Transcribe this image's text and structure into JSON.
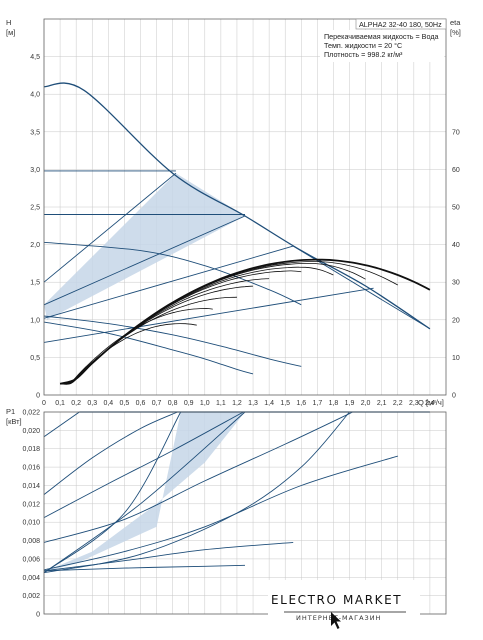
{
  "chart_data": [
    {
      "type": "line",
      "title": "ALPHA2 32-40 180, 50Hz",
      "notes": [
        "Перекачиваемая жидкость = Вода",
        "Темп. жидкости = 20 °C",
        "Плотность = 998.2 кг/м³"
      ],
      "ylabel": "H",
      "yunit": "[м]",
      "y2label": "eta",
      "y2unit": "[%]",
      "xlabel": "Q",
      "xunit": "[м³/ч]",
      "xlim": [
        0,
        2.5
      ],
      "ylim": [
        0,
        5.0
      ],
      "y2lim": [
        0,
        100
      ],
      "xticks": [
        "0",
        "0,1",
        "0,2",
        "0,3",
        "0,4",
        "0,5",
        "0,6",
        "0,7",
        "0,8",
        "0,9",
        "1,0",
        "1,1",
        "1,2",
        "1,3",
        "1,4",
        "1,5",
        "1,6",
        "1,7",
        "1,8",
        "1,9",
        "2,0",
        "2,1",
        "2,2",
        "2,3",
        "2,4"
      ],
      "yticks": [
        "0",
        "0,5",
        "1,0",
        "1,5",
        "2,0",
        "2,5",
        "3,0",
        "3,5",
        "4,0",
        "4,5"
      ],
      "y2ticks": [
        "0",
        "10",
        "20",
        "30",
        "40",
        "50",
        "60",
        "70"
      ],
      "grid": true,
      "colors": {
        "curve": "#1f4e79",
        "fill": "#c6d6e7",
        "eta": "#111111",
        "grid": "#c8c8c8"
      },
      "shaded_regions": [
        {
          "x": [
            0,
            0.82,
            1.25,
            0.02
          ],
          "y": [
            1.2,
            2.95,
            2.38,
            1.0
          ]
        }
      ],
      "series": [
        {
          "x": [
            0,
            0.25,
            0.8,
            1.25,
            1.6,
            2.0,
            2.4
          ],
          "y": [
            4.1,
            4.05,
            2.95,
            2.38,
            1.92,
            1.45,
            0.88
          ]
        },
        {
          "x": [
            0,
            0.82
          ],
          "y": [
            2.98,
            2.98
          ]
        },
        {
          "x": [
            0,
            1.25
          ],
          "y": [
            2.4,
            2.4
          ]
        },
        {
          "x": [
            0,
            0.82
          ],
          "y": [
            1.5,
            2.95
          ]
        },
        {
          "x": [
            0,
            1.25
          ],
          "y": [
            1.2,
            2.38
          ]
        },
        {
          "x": [
            0,
            1.55
          ],
          "y": [
            1.02,
            1.98
          ]
        },
        {
          "x": [
            0,
            2.05
          ],
          "y": [
            0.7,
            1.42
          ]
        },
        {
          "x": [
            0,
            0.6,
            1.0,
            1.4,
            1.6
          ],
          "y": [
            2.03,
            1.92,
            1.72,
            1.4,
            1.2
          ]
        },
        {
          "x": [
            1.55,
            2.4
          ],
          "y": [
            1.98,
            0.88
          ]
        },
        {
          "x": [
            0,
            0.4,
            0.8,
            1.1,
            1.4,
            1.6
          ],
          "y": [
            1.05,
            0.95,
            0.8,
            0.65,
            0.48,
            0.38
          ]
        },
        {
          "x": [
            0,
            0.4,
            0.8,
            1.0,
            1.2,
            1.3
          ],
          "y": [
            0.97,
            0.82,
            0.6,
            0.48,
            0.34,
            0.28
          ]
        }
      ]
    },
    {
      "type": "line",
      "ylabel": "P1",
      "yunit": "[кВт]",
      "xlim": [
        0,
        2.5
      ],
      "ylim": [
        0,
        0.022
      ],
      "yticks": [
        "0",
        "0,002",
        "0,004",
        "0,006",
        "0,008",
        "0,010",
        "0,012",
        "0,014",
        "0,016",
        "0,018",
        "0,020",
        "0,022"
      ],
      "grid": true,
      "shaded_regions": [
        {
          "x": [
            0,
            0.2,
            0.7,
            0.85,
            1.25,
            1.0,
            0.7,
            0.3,
            0
          ],
          "y": [
            0.0046,
            0.0055,
            0.0095,
            0.022,
            0.022,
            0.0165,
            0.012,
            0.0068,
            0.0046
          ]
        }
      ],
      "series": [
        {
          "x": [
            0.22,
            2.4
          ],
          "y": [
            0.022,
            0.022
          ]
        },
        {
          "x": [
            0,
            0.22
          ],
          "y": [
            0.0193,
            0.022
          ]
        },
        {
          "x": [
            0,
            0.5,
            0.85
          ],
          "y": [
            0.0045,
            0.011,
            0.022
          ]
        },
        {
          "x": [
            0,
            0.6,
            1.25
          ],
          "y": [
            0.0045,
            0.012,
            0.022
          ]
        },
        {
          "x": [
            0,
            0.6,
            1.2,
            1.6,
            1.9
          ],
          "y": [
            0.0045,
            0.0065,
            0.011,
            0.016,
            0.022
          ]
        },
        {
          "x": [
            0,
            0.5,
            1.0,
            1.6,
            2.2
          ],
          "y": [
            0.0048,
            0.0068,
            0.0095,
            0.014,
            0.0172
          ]
        },
        {
          "x": [
            0,
            0.5,
            1.0,
            1.55
          ],
          "y": [
            0.0047,
            0.0058,
            0.007,
            0.0078
          ]
        },
        {
          "x": [
            0,
            0.5,
            1.0,
            1.25
          ],
          "y": [
            0.0047,
            0.005,
            0.0052,
            0.0053
          ]
        },
        {
          "x": [
            0,
            0.3,
            0.6,
            0.83
          ],
          "y": [
            0.013,
            0.017,
            0.0202,
            0.022
          ]
        },
        {
          "x": [
            0,
            0.4,
            0.8,
            1.24
          ],
          "y": [
            0.0105,
            0.0142,
            0.0178,
            0.022
          ]
        },
        {
          "x": [
            0,
            0.5,
            1.0,
            1.5,
            1.92
          ],
          "y": [
            0.0078,
            0.0103,
            0.0145,
            0.0185,
            0.022
          ]
        }
      ]
    }
  ],
  "logo": {
    "title": "ELECTRO MARKET",
    "subtitle": "ИНТЕРНЕТ-МАГАЗИН"
  }
}
